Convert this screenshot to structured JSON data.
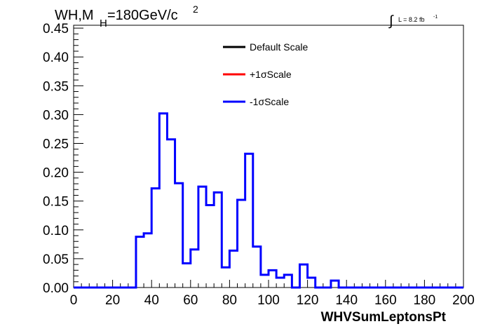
{
  "chart_data": {
    "type": "line",
    "title_parts": {
      "main": "WH,M",
      "sub": "H",
      "value": "=180GeV/c",
      "sup": "2"
    },
    "lumi": {
      "integral": "∫",
      "text": "L = 8.2 fb",
      "sup": "-1"
    },
    "xlabel": "WHVSumLeptonsPt",
    "ylabel": "",
    "xlim": [
      0,
      200
    ],
    "ylim": [
      0,
      0.455
    ],
    "xticks": [
      0,
      20,
      40,
      60,
      80,
      100,
      120,
      140,
      160,
      180,
      200
    ],
    "xtick_labels": [
      "0",
      "20",
      "40",
      "60",
      "80",
      "100",
      "120",
      "140",
      "160",
      "180",
      "200"
    ],
    "yticks": [
      0,
      0.05,
      0.1,
      0.15,
      0.2,
      0.25,
      0.3,
      0.35,
      0.4,
      0.45
    ],
    "ytick_labels": [
      "0.00",
      "0.05",
      "0.10",
      "0.15",
      "0.20",
      "0.25",
      "0.30",
      "0.35",
      "0.40",
      "0.45"
    ],
    "bin_width": 4,
    "bin_edges_start": 0,
    "legend": [
      {
        "name": "Default Scale",
        "color": "#000000"
      },
      {
        "name": "+1σScale",
        "color": "#ff0000"
      },
      {
        "name": "-1σScale",
        "color": "#0000ff"
      }
    ],
    "legend_position": "top-center",
    "grid": false,
    "series": [
      {
        "name": "-1σScale",
        "color": "#0000ff",
        "values": [
          0,
          0,
          0,
          0,
          0,
          0,
          0,
          0,
          0.088,
          0.094,
          0.172,
          0.302,
          0.257,
          0.181,
          0.042,
          0.066,
          0.175,
          0.143,
          0.165,
          0.035,
          0.064,
          0.152,
          0.232,
          0.071,
          0.022,
          0.03,
          0.017,
          0.022,
          0,
          0.04,
          0.017,
          0,
          0,
          0.012,
          0,
          0,
          0,
          0,
          0,
          0,
          0,
          0,
          0,
          0,
          0,
          0,
          0,
          0,
          0,
          0
        ]
      }
    ]
  }
}
